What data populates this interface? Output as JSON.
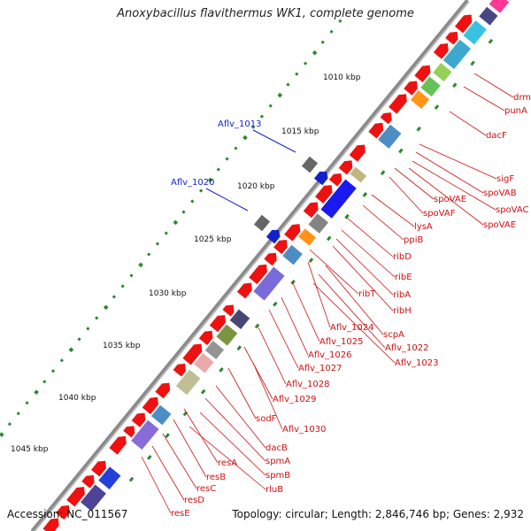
{
  "title": "Anoxybacillus flavithermus WK1, complete genome",
  "footer": {
    "accession": "Accession: NC_011567",
    "topology": "Topology: circular; Length: 2,846,746 bp; Genes: 2,932"
  },
  "colors": {
    "backbone": "#8a8a8a",
    "gene": "#ee1111",
    "tick": "#2a8a2a",
    "label": "#cc1111",
    "highlight": "#1122cc",
    "kbp": "#111111"
  },
  "kbp_labels": [
    "1010 kbp",
    "1015 kbp",
    "1020 kbp",
    "1025 kbp",
    "1030 kbp",
    "1035 kbp",
    "1040 kbp",
    "1045 kbp"
  ],
  "highlight_labels": [
    "Aflv_1013",
    "Aflv_1020"
  ],
  "gene_labels": [
    "drm",
    "punA",
    "dacF",
    "sigF",
    "spoVAB",
    "spoVAC",
    "spoVAE",
    "spoVAE",
    "spoVAF",
    "lysA",
    "ppiB",
    "ribD",
    "ribE",
    "ribA",
    "ribT",
    "ribH",
    "Aflv_1024",
    "scpA",
    "Aflv_1025",
    "Aflv_1022",
    "Aflv_1026",
    "Aflv_1023",
    "Aflv_1027",
    "Aflv_1028",
    "Aflv_1029",
    "sodF",
    "Aflv_1030",
    "dacB",
    "spmA",
    "resA",
    "spmB",
    "resB",
    "rluB",
    "resC",
    "resD",
    "resE"
  ]
}
